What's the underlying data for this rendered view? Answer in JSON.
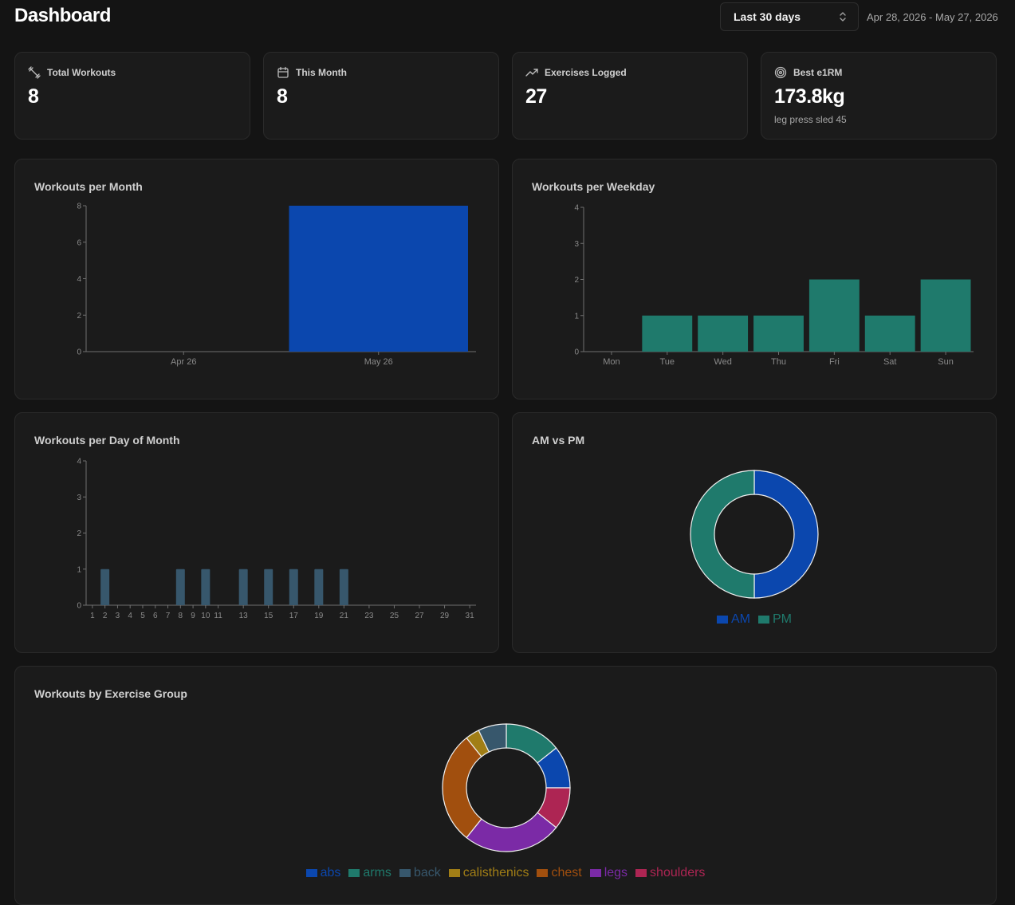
{
  "header": {
    "title": "Dashboard",
    "range_select": "Last 30 days",
    "date_range": "Apr 28, 2026 - May 27, 2026"
  },
  "stats": [
    {
      "icon": "dumbbell-icon",
      "label": "Total Workouts",
      "value": "8"
    },
    {
      "icon": "calendar-icon",
      "label": "This Month",
      "value": "8"
    },
    {
      "icon": "trending-up-icon",
      "label": "Exercises Logged",
      "value": "27"
    },
    {
      "icon": "target-icon",
      "label": "Best e1RM",
      "value": "173.8kg",
      "sub": "leg press sled 45"
    }
  ],
  "colors": {
    "blue": "#0b47ae",
    "teal": "#1f7a6c",
    "slate": "#37576c",
    "gold": "#a17e16",
    "orange": "#a14f0e",
    "purple": "#7b2aa6",
    "crimson": "#ad2553"
  },
  "chart_data": [
    {
      "type": "bar",
      "title": "Workouts per Month",
      "categories": [
        "Apr 26",
        "May 26"
      ],
      "values": [
        0,
        8
      ],
      "ylim": [
        0,
        8
      ],
      "yticks": [
        0,
        2,
        4,
        6,
        8
      ],
      "color": "#0b47ae"
    },
    {
      "type": "bar",
      "title": "Workouts per Weekday",
      "categories": [
        "Mon",
        "Tue",
        "Wed",
        "Thu",
        "Fri",
        "Sat",
        "Sun"
      ],
      "values": [
        0,
        1,
        1,
        1,
        2,
        1,
        2
      ],
      "ylim": [
        0,
        4
      ],
      "yticks": [
        0,
        1,
        2,
        3,
        4
      ],
      "color": "#1f7a6c"
    },
    {
      "type": "bar",
      "title": "Workouts per Day of Month",
      "x": [
        1,
        2,
        3,
        4,
        5,
        6,
        7,
        8,
        9,
        10,
        11,
        12,
        13,
        14,
        15,
        16,
        17,
        18,
        19,
        20,
        21,
        22,
        23,
        24,
        25,
        26,
        27,
        28,
        29,
        30,
        31
      ],
      "values": [
        0,
        1,
        0,
        0,
        0,
        0,
        0,
        1,
        0,
        1,
        0,
        0,
        1,
        0,
        1,
        0,
        1,
        0,
        1,
        0,
        1,
        0,
        0,
        0,
        0,
        0,
        0,
        0,
        0,
        0,
        0
      ],
      "xtick_labels": [
        1,
        2,
        3,
        4,
        5,
        6,
        7,
        8,
        9,
        10,
        11,
        13,
        15,
        17,
        19,
        21,
        23,
        25,
        27,
        29,
        31
      ],
      "ylim": [
        0,
        4
      ],
      "yticks": [
        0,
        1,
        2,
        3,
        4
      ],
      "color": "#37576c"
    },
    {
      "type": "pie",
      "title": "AM vs PM",
      "labels": [
        "AM",
        "PM"
      ],
      "values": [
        4,
        4
      ],
      "colors": [
        "#0b47ae",
        "#1f7a6c"
      ],
      "legend": "bottom"
    },
    {
      "type": "pie",
      "title": "Workouts by Exercise Group",
      "labels": [
        "arms",
        "abs",
        "shoulders",
        "legs",
        "chest",
        "calisthenics",
        "back"
      ],
      "values": [
        4,
        3,
        3,
        7,
        8,
        1,
        2
      ],
      "colors": [
        "#1f7a6c",
        "#0b47ae",
        "#ad2553",
        "#7b2aa6",
        "#a14f0e",
        "#a17e16",
        "#37576c"
      ],
      "legend_order": [
        "abs",
        "arms",
        "back",
        "calisthenics",
        "chest",
        "legs",
        "shoulders"
      ],
      "legend_colors": [
        "#0b47ae",
        "#1f7a6c",
        "#37576c",
        "#a17e16",
        "#a14f0e",
        "#7b2aa6",
        "#ad2553"
      ],
      "legend": "bottom"
    }
  ]
}
